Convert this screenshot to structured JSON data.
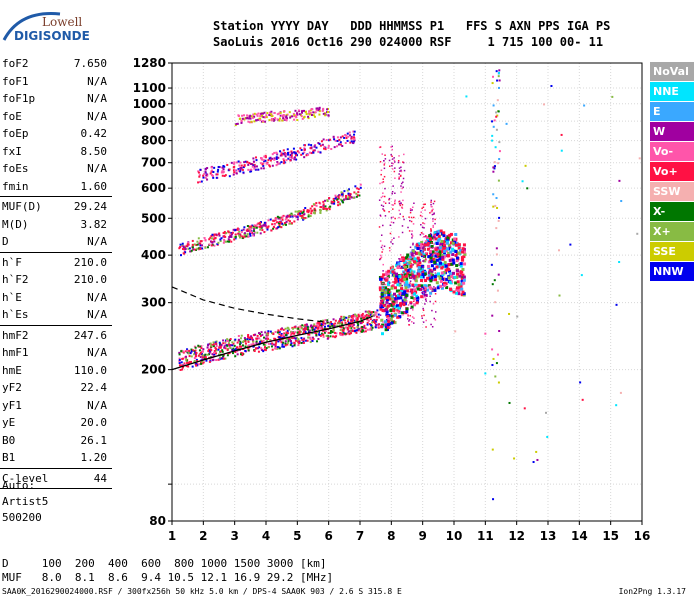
{
  "logo": {
    "line1": "Lowell",
    "line2": "DIGISONDE",
    "line1_color": "#7a3d2a",
    "line2_color": "#1f5aa8"
  },
  "header": {
    "row1": "Station YYYY DAY   DDD HHMMSS P1   FFS S AXN PPS IGA PS",
    "row2": "SaoLuis 2016 Oct16 290 024000 RSF     1 715 100 00- 11"
  },
  "params": [
    {
      "label": "foF2",
      "value": "7.650"
    },
    {
      "label": "foF1",
      "value": "N/A"
    },
    {
      "label": "foF1p",
      "value": "N/A"
    },
    {
      "label": "foE",
      "value": "N/A"
    },
    {
      "label": "foEp",
      "value": "0.42"
    },
    {
      "label": "fxI",
      "value": "8.50"
    },
    {
      "label": "foEs",
      "value": "N/A"
    },
    {
      "label": "fmin",
      "value": "1.60"
    },
    {
      "sep": true
    },
    {
      "label": "MUF(D)",
      "value": "29.24"
    },
    {
      "label": "M(D)",
      "value": "3.82"
    },
    {
      "label": "D",
      "value": "N/A"
    },
    {
      "sep": true
    },
    {
      "label": "h`F",
      "value": "210.0"
    },
    {
      "label": "h`F2",
      "value": "210.0"
    },
    {
      "label": "h`E",
      "value": "N/A"
    },
    {
      "label": "h`Es",
      "value": "N/A"
    },
    {
      "sep": true
    },
    {
      "label": "hmF2",
      "value": "247.6"
    },
    {
      "label": "hmF1",
      "value": "N/A"
    },
    {
      "label": "hmE",
      "value": "110.0"
    },
    {
      "label": "yF2",
      "value": "22.4"
    },
    {
      "label": "yF1",
      "value": "N/A"
    },
    {
      "label": "yE",
      "value": "20.0"
    },
    {
      "label": "B0",
      "value": "26.1"
    },
    {
      "label": "B1",
      "value": "1.20"
    },
    {
      "sep": true
    },
    {
      "label": "C-level",
      "value": "44"
    },
    {
      "sep": true
    }
  ],
  "auto": {
    "line1": "Auto:",
    "line2": "Artist5",
    "line3": "500200"
  },
  "scaling": {
    "row1": "D     100  200  400  600  800 1000 1500 3000 [km]",
    "row2": "MUF   8.0  8.1  8.6  9.4 10.5 12.1 16.9 29.2 [MHz]"
  },
  "footer": "SAA0K_2016290024000.RSF / 300fx256h 50 kHz 5.0 km / DPS-4 SAA0K 903 / 2.6 S 315.8 E",
  "version": "Ion2Png 1.3.17",
  "legend": [
    {
      "label": "NoVal",
      "color": "#a8a8a8"
    },
    {
      "label": "NNE",
      "color": "#00e5ff"
    },
    {
      "label": "E",
      "color": "#3aa8ff"
    },
    {
      "label": "W",
      "color": "#a000a0"
    },
    {
      "label": "Vo-",
      "color": "#ff55aa"
    },
    {
      "label": "Vo+",
      "color": "#ff1144"
    },
    {
      "label": "SSW",
      "color": "#f5b0b0"
    },
    {
      "label": "X-",
      "color": "#007700"
    },
    {
      "label": "X+",
      "color": "#88bb44"
    },
    {
      "label": "SSE",
      "color": "#cccc00"
    },
    {
      "label": "NNW",
      "color": "#0000ee"
    }
  ],
  "chart_data": {
    "type": "scatter",
    "title": "",
    "xlabel": "",
    "ylabel": "",
    "xlim": [
      1,
      16
    ],
    "ylim": [
      80,
      1280
    ],
    "y_scale": "log",
    "x_ticks": [
      1,
      2,
      3,
      4,
      5,
      6,
      7,
      8,
      9,
      10,
      11,
      12,
      13,
      14,
      15,
      16
    ],
    "y_ticks": [
      80,
      100,
      200,
      300,
      400,
      500,
      600,
      700,
      800,
      900,
      1000,
      1100,
      1280
    ],
    "y_tick_labels": [
      "80",
      "",
      "200",
      "300",
      "400",
      "500",
      "600",
      "700",
      "800",
      "900",
      "1000",
      "1100",
      "1280"
    ],
    "grid": true,
    "traces": [
      {
        "name": "O-trace F2 main",
        "x": [
          1.2,
          2,
          3,
          4,
          5,
          6,
          7,
          7.6
        ],
        "y": [
          212,
          222,
          232,
          240,
          248,
          258,
          268,
          275
        ]
      },
      {
        "name": "virtual height profile",
        "x": [
          1.0,
          2,
          3,
          4,
          5,
          6,
          7,
          7.4
        ],
        "y": [
          200,
          212,
          224,
          236,
          246,
          256,
          268,
          276
        ]
      },
      {
        "name": "2nd hop",
        "x": [
          1.2,
          2,
          3,
          4,
          5,
          6,
          7
        ],
        "y": [
          415,
          435,
          455,
          480,
          510,
          550,
          600
        ]
      },
      {
        "name": "3rd hop",
        "x": [
          1.8,
          3,
          4,
          5,
          6,
          6.8
        ],
        "y": [
          650,
          680,
          710,
          750,
          790,
          820
        ]
      },
      {
        "name": "4th hop",
        "x": [
          3,
          4,
          5,
          6
        ],
        "y": [
          910,
          930,
          940,
          960
        ]
      },
      {
        "name": "spread F region",
        "x": [
          7.6,
          8,
          8.5,
          9,
          9.5,
          10,
          10.3
        ],
        "y": [
          300,
          320,
          350,
          380,
          400,
          390,
          370
        ]
      },
      {
        "name": "dashed extrapolation",
        "x": [
          1,
          2,
          3,
          4,
          5,
          6
        ],
        "y": [
          330,
          305,
          290,
          280,
          272,
          266
        ]
      }
    ]
  }
}
